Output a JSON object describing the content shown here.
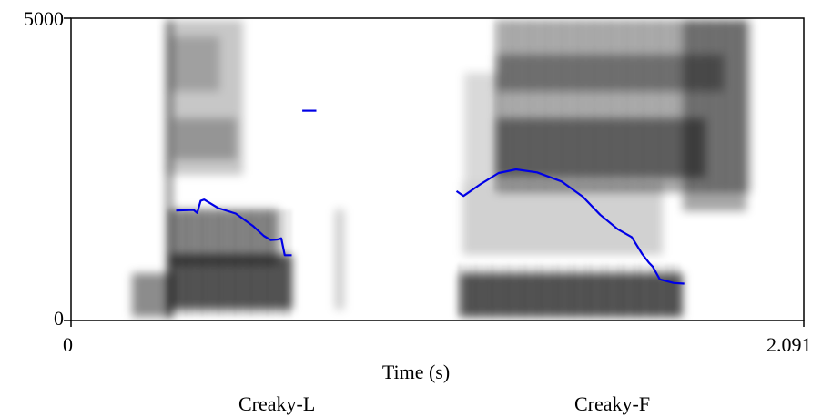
{
  "chart_data": {
    "type": "spectrogram",
    "xlabel": "Time (s)",
    "ylabel": "",
    "xlim": [
      0,
      2.091
    ],
    "ylim": [
      0,
      5000
    ],
    "x_tick_labels": [
      "0",
      "2.091"
    ],
    "y_tick_labels": [
      "5000",
      "0"
    ],
    "annotations": [
      "Creaky-L",
      "Creaky-F"
    ],
    "pitch_color": "#0000e6",
    "pitch_segments": [
      [
        [
          0.3,
          1820
        ],
        [
          0.35,
          1830
        ],
        [
          0.36,
          1780
        ],
        [
          0.37,
          1980
        ],
        [
          0.38,
          2000
        ],
        [
          0.42,
          1860
        ],
        [
          0.47,
          1770
        ],
        [
          0.52,
          1560
        ],
        [
          0.55,
          1400
        ],
        [
          0.57,
          1330
        ],
        [
          0.59,
          1340
        ],
        [
          0.6,
          1360
        ],
        [
          0.61,
          1080
        ],
        [
          0.63,
          1080
        ]
      ],
      [
        [
          0.66,
          3470
        ],
        [
          0.7,
          3470
        ]
      ],
      [
        [
          1.1,
          2140
        ],
        [
          1.12,
          2060
        ],
        [
          1.17,
          2260
        ],
        [
          1.22,
          2440
        ],
        [
          1.27,
          2500
        ],
        [
          1.33,
          2450
        ],
        [
          1.4,
          2300
        ],
        [
          1.46,
          2050
        ],
        [
          1.51,
          1750
        ],
        [
          1.56,
          1510
        ],
        [
          1.6,
          1380
        ],
        [
          1.63,
          1100
        ],
        [
          1.65,
          950
        ],
        [
          1.66,
          890
        ],
        [
          1.68,
          680
        ],
        [
          1.72,
          620
        ],
        [
          1.75,
          610
        ]
      ]
    ]
  }
}
